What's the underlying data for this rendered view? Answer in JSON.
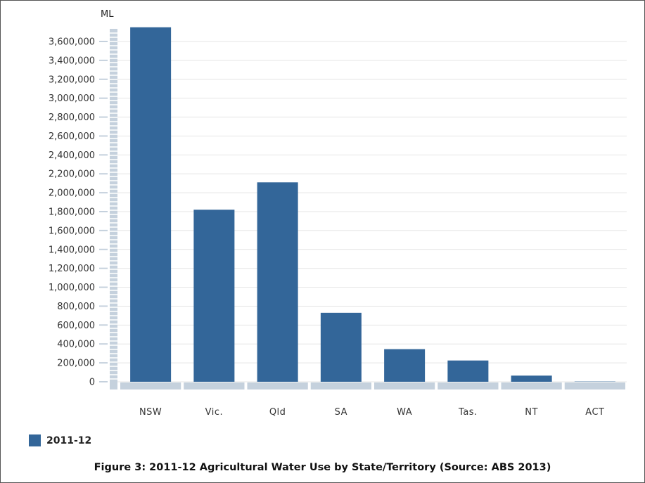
{
  "chart_data": {
    "type": "bar",
    "ylabel": "ML",
    "categories": [
      "NSW",
      "Vic.",
      "Qld",
      "SA",
      "WA",
      "Tas.",
      "NT",
      "ACT"
    ],
    "series": [
      {
        "name": "2011-12",
        "values": [
          3750000,
          1820000,
          2110000,
          730000,
          345000,
          225000,
          65000,
          3000
        ]
      }
    ],
    "ylim": [
      0,
      3700000
    ],
    "yticks": [
      0,
      200000,
      400000,
      600000,
      800000,
      1000000,
      1200000,
      1400000,
      1600000,
      1800000,
      2000000,
      2200000,
      2400000,
      2600000,
      2800000,
      3000000,
      3200000,
      3400000,
      3600000
    ],
    "ytick_labels": [
      "0",
      "200,000",
      "400,000",
      "600,000",
      "800,000",
      "1,000,000",
      "1,200,000",
      "1,400,000",
      "1,600,000",
      "1,800,000",
      "2,000,000",
      "2,200,000",
      "2,400,000",
      "2,600,000",
      "2,800,000",
      "3,000,000",
      "3,200,000",
      "3,400,000",
      "3,600,000"
    ],
    "grid": true,
    "legend_position": "bottom-left",
    "caption": "Figure 3: 2011-12 Agricultural Water Use by State/Territory (Source: ABS 2013)"
  },
  "colors": {
    "bar": "#336699",
    "axis": "#c5d1dd",
    "grid": "#e4e4e4"
  }
}
